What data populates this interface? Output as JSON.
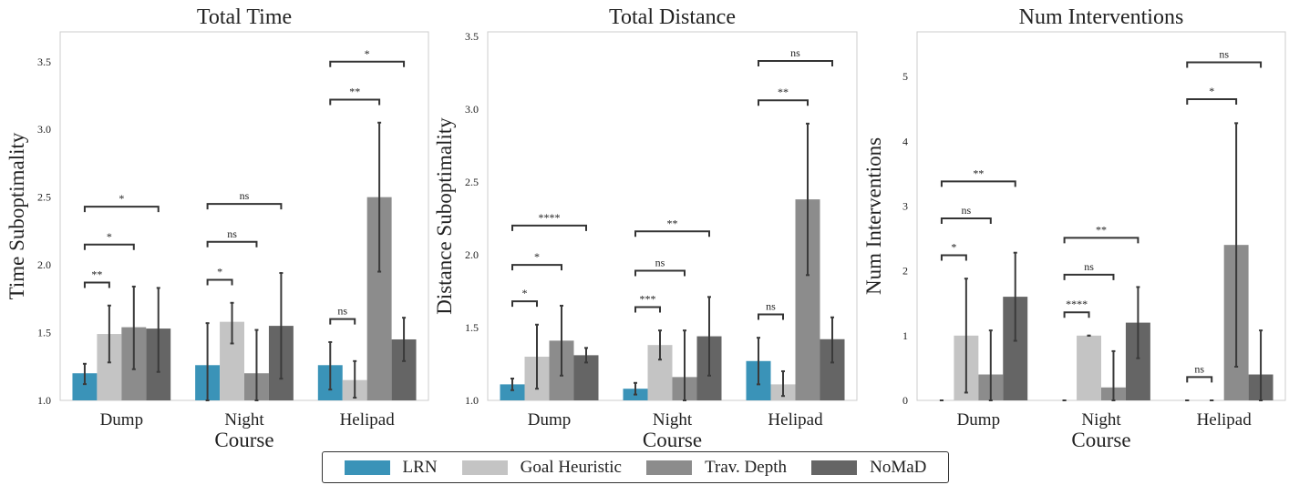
{
  "chart_data": [
    {
      "type": "bar",
      "title": "Total Time",
      "xlabel": "Course",
      "ylabel": "Time Suboptimality",
      "ylim": [
        1.0,
        3.72
      ],
      "yticks": [
        "1.0",
        "1.5",
        "2.0",
        "2.5",
        "3.0",
        "3.5"
      ],
      "categories": [
        "Dump",
        "Night",
        "Helipad"
      ],
      "grid": false,
      "series": [
        {
          "name": "LRN",
          "values": [
            1.2,
            1.26,
            1.26
          ],
          "err_low": [
            1.12,
            1.0,
            1.08
          ],
          "err_high": [
            1.27,
            1.57,
            1.43
          ]
        },
        {
          "name": "Goal Heuristic",
          "values": [
            1.49,
            1.58,
            1.15
          ],
          "err_low": [
            1.28,
            1.42,
            1.02
          ],
          "err_high": [
            1.7,
            1.72,
            1.29
          ]
        },
        {
          "name": "Trav. Depth",
          "values": [
            1.54,
            1.2,
            2.5
          ],
          "err_low": [
            1.23,
            1.0,
            1.95
          ],
          "err_high": [
            1.84,
            1.52,
            3.05
          ]
        },
        {
          "name": "NoMaD",
          "values": [
            1.53,
            1.55,
            1.45
          ],
          "err_low": [
            1.21,
            1.16,
            1.29
          ],
          "err_high": [
            1.83,
            1.94,
            1.61
          ]
        }
      ],
      "significance": [
        {
          "category": 0,
          "from": 0,
          "to": 1,
          "y": 1.87,
          "label": "**"
        },
        {
          "category": 0,
          "from": 0,
          "to": 2,
          "y": 2.15,
          "label": "*"
        },
        {
          "category": 0,
          "from": 0,
          "to": 3,
          "y": 2.43,
          "label": "*"
        },
        {
          "category": 1,
          "from": 0,
          "to": 1,
          "y": 1.89,
          "label": "*"
        },
        {
          "category": 1,
          "from": 0,
          "to": 2,
          "y": 2.17,
          "label": "ns"
        },
        {
          "category": 1,
          "from": 0,
          "to": 3,
          "y": 2.45,
          "label": "ns"
        },
        {
          "category": 2,
          "from": 0,
          "to": 1,
          "y": 1.6,
          "label": "ns"
        },
        {
          "category": 2,
          "from": 0,
          "to": 2,
          "y": 3.22,
          "label": "**"
        },
        {
          "category": 2,
          "from": 0,
          "to": 3,
          "y": 3.5,
          "label": "*"
        }
      ]
    },
    {
      "type": "bar",
      "title": "Total Distance",
      "xlabel": "Course",
      "ylabel": "Distance Suboptimality",
      "ylim": [
        1.0,
        3.53
      ],
      "yticks": [
        "1.0",
        "1.5",
        "2.0",
        "2.5",
        "3.0",
        "3.5"
      ],
      "categories": [
        "Dump",
        "Night",
        "Helipad"
      ],
      "grid": false,
      "series": [
        {
          "name": "LRN",
          "values": [
            1.11,
            1.08,
            1.27
          ],
          "err_low": [
            1.07,
            1.04,
            1.11
          ],
          "err_high": [
            1.15,
            1.12,
            1.43
          ]
        },
        {
          "name": "Goal Heuristic",
          "values": [
            1.3,
            1.38,
            1.11
          ],
          "err_low": [
            1.08,
            1.28,
            1.03
          ],
          "err_high": [
            1.52,
            1.48,
            1.2
          ]
        },
        {
          "name": "Trav. Depth",
          "values": [
            1.41,
            1.16,
            2.38
          ],
          "err_low": [
            1.17,
            1.0,
            1.86
          ],
          "err_high": [
            1.65,
            1.48,
            2.9
          ]
        },
        {
          "name": "NoMaD",
          "values": [
            1.31,
            1.44,
            1.42
          ],
          "err_low": [
            1.26,
            1.17,
            1.26
          ],
          "err_high": [
            1.36,
            1.71,
            1.57
          ]
        }
      ],
      "significance": [
        {
          "category": 0,
          "from": 0,
          "to": 1,
          "y": 1.68,
          "label": "*"
        },
        {
          "category": 0,
          "from": 0,
          "to": 2,
          "y": 1.93,
          "label": "*"
        },
        {
          "category": 0,
          "from": 0,
          "to": 3,
          "y": 2.2,
          "label": "****"
        },
        {
          "category": 1,
          "from": 0,
          "to": 1,
          "y": 1.64,
          "label": "***"
        },
        {
          "category": 1,
          "from": 0,
          "to": 2,
          "y": 1.89,
          "label": "ns"
        },
        {
          "category": 1,
          "from": 0,
          "to": 3,
          "y": 2.16,
          "label": "**"
        },
        {
          "category": 2,
          "from": 0,
          "to": 1,
          "y": 1.59,
          "label": "ns"
        },
        {
          "category": 2,
          "from": 0,
          "to": 2,
          "y": 3.06,
          "label": "**"
        },
        {
          "category": 2,
          "from": 0,
          "to": 3,
          "y": 3.33,
          "label": "ns"
        }
      ]
    },
    {
      "type": "bar",
      "title": "Num Interventions",
      "xlabel": "Course",
      "ylabel": "Num Interventions",
      "ylim": [
        0,
        5.69
      ],
      "yticks": [
        "0",
        "1",
        "2",
        "3",
        "4",
        "5"
      ],
      "categories": [
        "Dump",
        "Night",
        "Helipad"
      ],
      "grid": false,
      "series": [
        {
          "name": "LRN",
          "values": [
            0,
            0,
            0
          ],
          "err_low": [
            0,
            0,
            0
          ],
          "err_high": [
            0,
            0,
            0
          ]
        },
        {
          "name": "Goal Heuristic",
          "values": [
            1.0,
            1.0,
            0
          ],
          "err_low": [
            0.12,
            1.0,
            0
          ],
          "err_high": [
            1.88,
            1.0,
            0
          ]
        },
        {
          "name": "Trav. Depth",
          "values": [
            0.4,
            0.2,
            2.4
          ],
          "err_low": [
            0,
            0,
            0.52
          ],
          "err_high": [
            1.08,
            0.76,
            4.28
          ]
        },
        {
          "name": "NoMaD",
          "values": [
            1.6,
            1.2,
            0.4
          ],
          "err_low": [
            0.92,
            0.65,
            0
          ],
          "err_high": [
            2.28,
            1.75,
            1.08
          ]
        }
      ],
      "significance": [
        {
          "category": 0,
          "from": 0,
          "to": 1,
          "y": 2.24,
          "label": "*"
        },
        {
          "category": 0,
          "from": 0,
          "to": 2,
          "y": 2.81,
          "label": "ns"
        },
        {
          "category": 0,
          "from": 0,
          "to": 3,
          "y": 3.38,
          "label": "**"
        },
        {
          "category": 1,
          "from": 0,
          "to": 1,
          "y": 1.36,
          "label": "****"
        },
        {
          "category": 1,
          "from": 0,
          "to": 2,
          "y": 1.94,
          "label": "ns"
        },
        {
          "category": 1,
          "from": 0,
          "to": 3,
          "y": 2.51,
          "label": "**"
        },
        {
          "category": 2,
          "from": 0,
          "to": 1,
          "y": 0.36,
          "label": "ns"
        },
        {
          "category": 2,
          "from": 0,
          "to": 2,
          "y": 4.65,
          "label": "*"
        },
        {
          "category": 2,
          "from": 0,
          "to": 3,
          "y": 5.22,
          "label": "ns"
        }
      ]
    }
  ],
  "legend": {
    "placement": "bottom-center",
    "items": [
      {
        "label": "LRN",
        "color": "#3a93b8"
      },
      {
        "label": "Goal Heuristic",
        "color": "#c4c4c4"
      },
      {
        "label": "Trav. Depth",
        "color": "#8c8c8c"
      },
      {
        "label": "NoMaD",
        "color": "#656565"
      }
    ]
  }
}
